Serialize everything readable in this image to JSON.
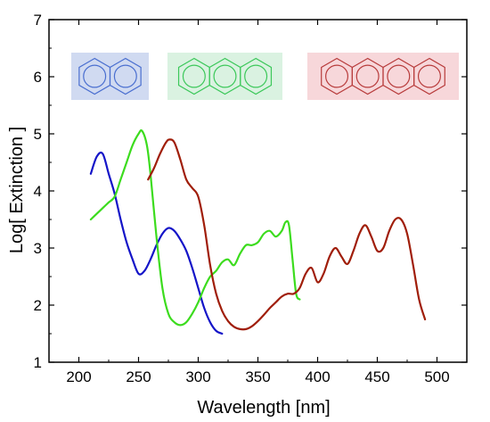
{
  "chart_data": {
    "type": "line",
    "xlabel": "Wavelength [nm]",
    "ylabel": "Log[ Extinction ]",
    "xlim": [
      175,
      525
    ],
    "ylim": [
      1,
      7
    ],
    "x_ticks": [
      200,
      250,
      300,
      350,
      400,
      450,
      500
    ],
    "y_ticks": [
      1,
      2,
      3,
      4,
      5,
      6,
      7
    ],
    "x_tick_labels": [
      "200",
      "250",
      "300",
      "350",
      "400",
      "450",
      "500"
    ],
    "y_tick_labels": [
      "1",
      "2",
      "3",
      "4",
      "5",
      "6",
      "7"
    ],
    "grid": false,
    "legend": "none",
    "series": [
      {
        "color": "#1414c8",
        "structure_rings": 2,
        "x": [
          210,
          215,
          220,
          225,
          230,
          235,
          240,
          245,
          250,
          255,
          260,
          265,
          270,
          275,
          280,
          285,
          290,
          295,
          300,
          305,
          310,
          315,
          320
        ],
        "y": [
          4.3,
          4.6,
          4.65,
          4.3,
          3.95,
          3.5,
          3.1,
          2.8,
          2.55,
          2.6,
          2.8,
          3.05,
          3.25,
          3.35,
          3.3,
          3.15,
          2.95,
          2.65,
          2.3,
          1.95,
          1.7,
          1.55,
          1.5
        ]
      },
      {
        "color": "#3cdc1e",
        "structure_rings": 3,
        "x": [
          210,
          215,
          220,
          225,
          230,
          235,
          240,
          245,
          250,
          253,
          257,
          260,
          265,
          270,
          275,
          280,
          285,
          290,
          295,
          300,
          305,
          310,
          315,
          320,
          325,
          330,
          335,
          340,
          345,
          350,
          355,
          360,
          365,
          370,
          373,
          376,
          379,
          382,
          385
        ],
        "y": [
          3.5,
          3.6,
          3.7,
          3.8,
          3.9,
          4.2,
          4.5,
          4.8,
          5.0,
          5.05,
          4.8,
          4.3,
          3.2,
          2.3,
          1.85,
          1.7,
          1.65,
          1.7,
          1.85,
          2.05,
          2.3,
          2.5,
          2.6,
          2.75,
          2.8,
          2.7,
          2.9,
          3.05,
          3.05,
          3.1,
          3.25,
          3.3,
          3.2,
          3.3,
          3.45,
          3.4,
          2.8,
          2.2,
          2.1
        ]
      },
      {
        "color": "#a01e0a",
        "structure_rings": 4,
        "x": [
          258,
          263,
          268,
          273,
          276,
          280,
          285,
          290,
          295,
          300,
          305,
          310,
          315,
          320,
          325,
          330,
          335,
          340,
          345,
          350,
          355,
          360,
          365,
          370,
          375,
          380,
          385,
          390,
          395,
          400,
          405,
          410,
          415,
          420,
          425,
          430,
          435,
          440,
          445,
          450,
          455,
          460,
          465,
          470,
          475,
          480,
          485,
          490
        ],
        "y": [
          4.2,
          4.4,
          4.65,
          4.85,
          4.9,
          4.85,
          4.55,
          4.2,
          4.05,
          3.9,
          3.4,
          2.7,
          2.2,
          1.9,
          1.72,
          1.62,
          1.58,
          1.58,
          1.63,
          1.72,
          1.83,
          1.95,
          2.05,
          2.15,
          2.2,
          2.2,
          2.3,
          2.55,
          2.65,
          2.4,
          2.55,
          2.85,
          3.0,
          2.85,
          2.72,
          2.95,
          3.25,
          3.4,
          3.2,
          2.95,
          3.0,
          3.3,
          3.5,
          3.5,
          3.25,
          2.7,
          2.1,
          1.75
        ]
      }
    ]
  },
  "structures": [
    {
      "name": "naphthalene",
      "rings": 2,
      "stroke": "#4a6fd0",
      "fill": "#c8d4ef"
    },
    {
      "name": "anthracene",
      "rings": 3,
      "stroke": "#3cc85a",
      "fill": "#d4f0dc"
    },
    {
      "name": "tetracene",
      "rings": 4,
      "stroke": "#b83c3c",
      "fill": "#f6d0d4"
    }
  ]
}
